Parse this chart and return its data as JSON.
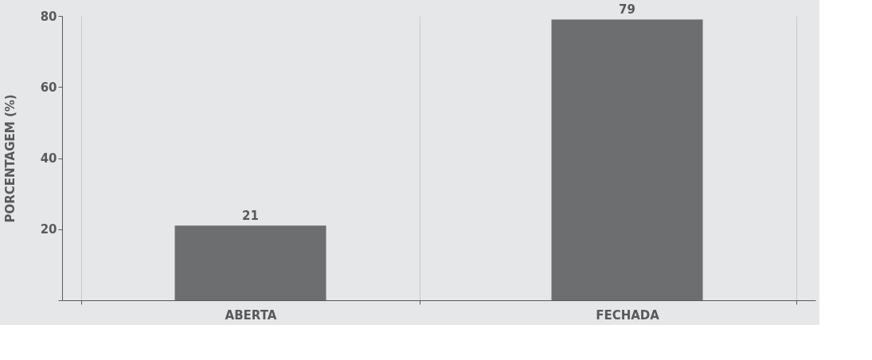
{
  "chart_data": {
    "type": "bar",
    "ylabel": "PORCENTAGEM (%)",
    "categories": [
      "ABERTA",
      "FECHADA"
    ],
    "values": [
      21,
      79
    ],
    "color": "#6d6e70",
    "data_labels": true,
    "ylim": [
      0,
      80
    ],
    "yticks": [
      {
        "value": 0,
        "label": null
      },
      20,
      40,
      60,
      80
    ],
    "grid": "x"
  }
}
